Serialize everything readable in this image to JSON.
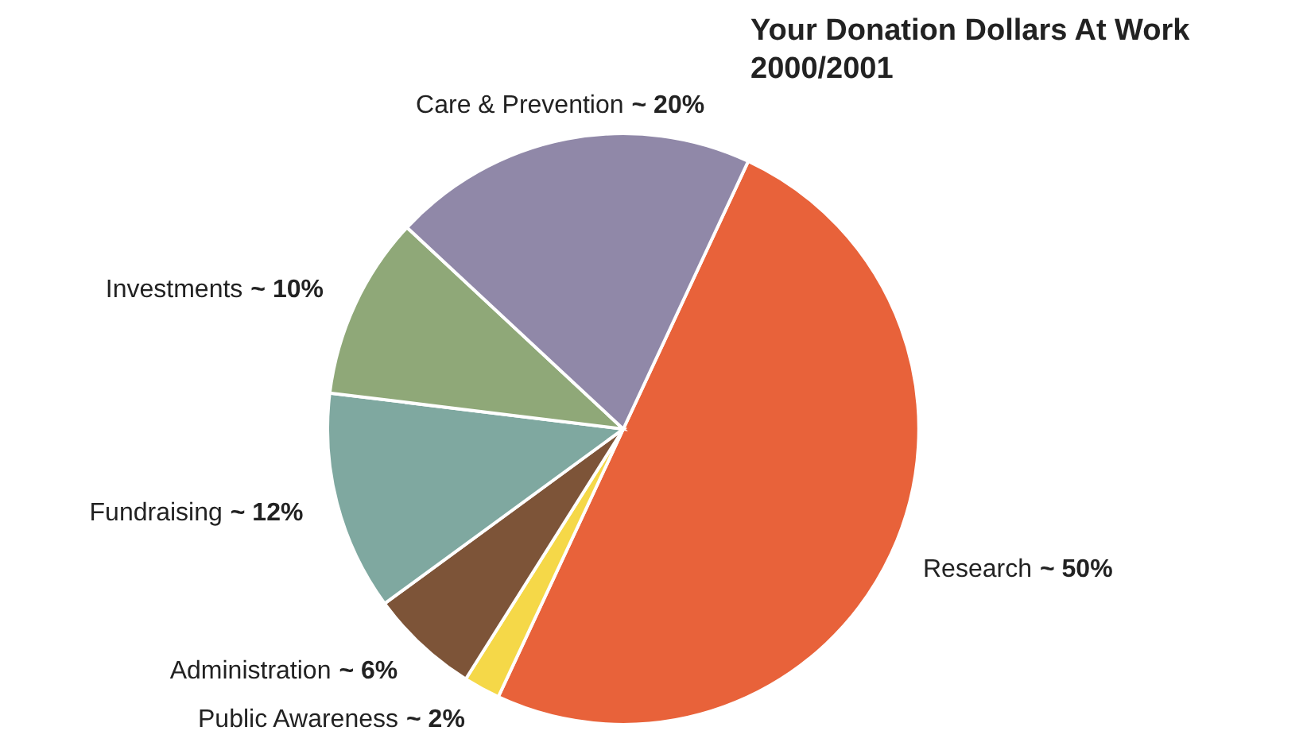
{
  "chart_data": {
    "type": "pie",
    "title": "Your Donation Dollars At Work",
    "subtitle": "2000/2001",
    "categories": [
      "Research",
      "Public Awareness",
      "Administration",
      "Fundraising",
      "Investments",
      "Care & Prevention"
    ],
    "values": [
      50,
      2,
      6,
      12,
      10,
      20
    ],
    "colors": [
      "#e8623a",
      "#f5d848",
      "#7d5438",
      "#7fa8a0",
      "#8fa878",
      "#9088a8"
    ],
    "value_labels": [
      "~ 50%",
      "~ 2%",
      "~ 6%",
      "~ 12%",
      "~ 10%",
      "~ 20%"
    ]
  }
}
